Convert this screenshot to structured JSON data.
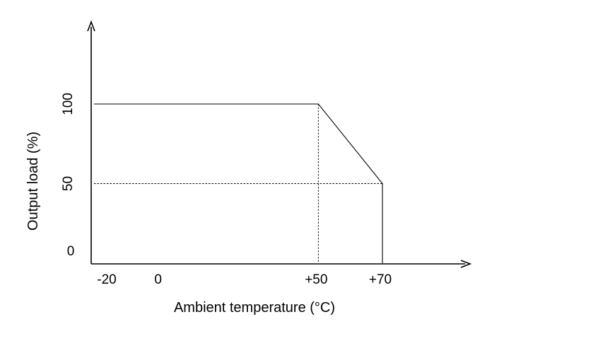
{
  "chart_data": {
    "type": "line",
    "xlabel": "Ambient temperature (°C)",
    "ylabel": "Output load (%)",
    "x_ticks": [
      {
        "value": -20,
        "label": "-20"
      },
      {
        "value": 0,
        "label": "0"
      },
      {
        "value": 50,
        "label": "+50"
      },
      {
        "value": 70,
        "label": "+70"
      }
    ],
    "y_ticks": [
      {
        "value": 0,
        "label": "0"
      },
      {
        "value": 50,
        "label": "50"
      },
      {
        "value": 100,
        "label": "100"
      }
    ],
    "series": [
      {
        "points": [
          {
            "x": -20,
            "y": 100
          },
          {
            "x": 50,
            "y": 100
          },
          {
            "x": 70,
            "y": 50
          },
          {
            "x": 70,
            "y": 0
          }
        ]
      }
    ],
    "reference_lines": [
      {
        "from": {
          "x": -20,
          "y": 50
        },
        "to": {
          "x": 70,
          "y": 50
        },
        "style": "dashed"
      },
      {
        "from": {
          "x": 50,
          "y": 100
        },
        "to": {
          "x": 50,
          "y": 0
        },
        "style": "dashed"
      }
    ],
    "xlim": [
      -20,
      70
    ],
    "ylim": [
      0,
      100
    ],
    "grid": false,
    "legend": "none",
    "colors": {
      "line": "#000000",
      "axis": "#000000"
    }
  }
}
